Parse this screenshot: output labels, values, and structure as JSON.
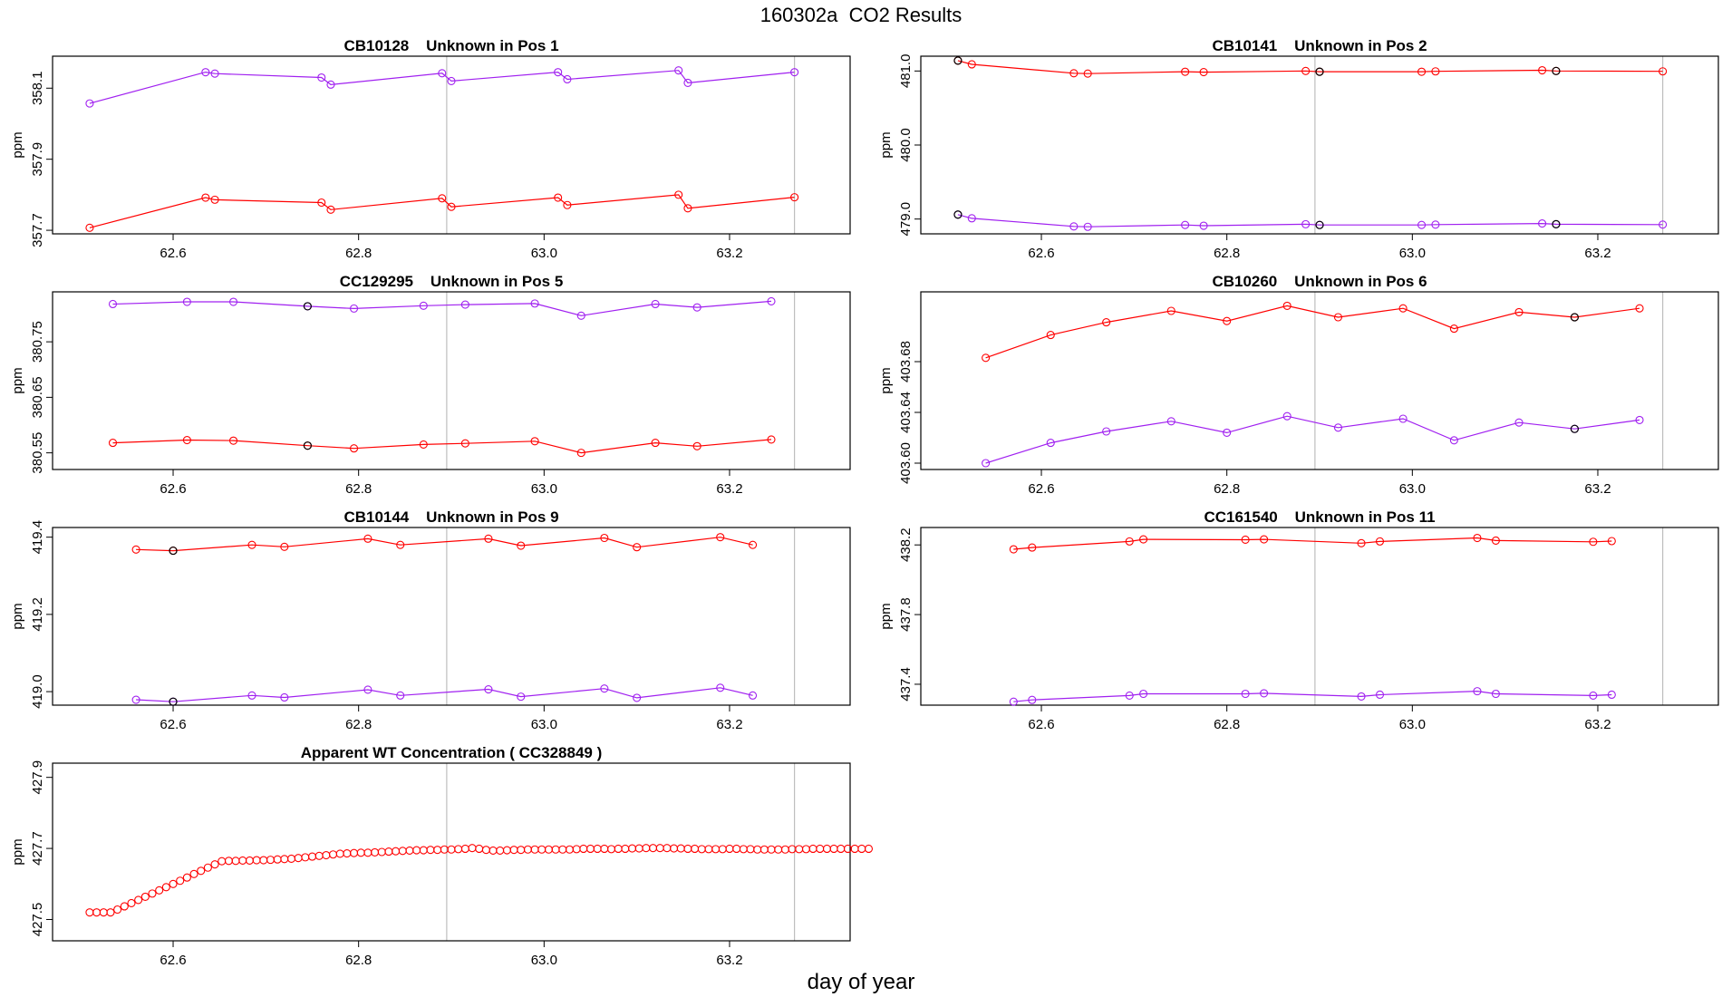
{
  "page": {
    "title": "160302a  CO2 Results",
    "xlabel": "day of year"
  },
  "colors": {
    "red": "#ff0000",
    "purple": "#a020f0",
    "flagged": "#000000",
    "guide_line": "#bebebe",
    "frame": "#000000"
  },
  "chart_data": [
    {
      "type": "line",
      "title": "CB10128    Unknown in Pos 1",
      "ylabel": "ppm",
      "xlim": [
        62.47,
        63.33
      ],
      "ylim": [
        357.69,
        358.19
      ],
      "xticks": [
        "62.6",
        "62.8",
        "63.0",
        "63.2"
      ],
      "yticks": [
        "357.7",
        "357.9",
        "358.1"
      ],
      "vlines": [
        62.895,
        63.27
      ],
      "series": [
        {
          "color": "purple",
          "x": [
            62.51,
            62.635,
            62.645,
            62.76,
            62.77,
            62.89,
            62.9,
            63.015,
            63.025,
            63.145,
            63.155,
            63.27
          ],
          "y": [
            358.057,
            358.145,
            358.141,
            358.13,
            358.11,
            358.142,
            358.12,
            358.145,
            358.125,
            358.15,
            358.115,
            358.145
          ]
        },
        {
          "color": "red",
          "x": [
            62.51,
            62.635,
            62.645,
            62.76,
            62.77,
            62.89,
            62.9,
            63.015,
            63.025,
            63.145,
            63.155,
            63.27
          ],
          "y": [
            357.707,
            357.792,
            357.786,
            357.778,
            357.758,
            357.79,
            357.766,
            357.792,
            357.771,
            357.8,
            357.762,
            357.793
          ]
        }
      ],
      "flagged": []
    },
    {
      "type": "line",
      "title": "CB10141    Unknown in Pos 2",
      "ylabel": "ppm",
      "xlim": [
        62.47,
        63.33
      ],
      "ylim": [
        478.8,
        481.2
      ],
      "xticks": [
        "62.6",
        "62.8",
        "63.0",
        "63.2"
      ],
      "yticks": [
        "479.0",
        "480.0",
        "481.0"
      ],
      "vlines": [
        62.895,
        63.27
      ],
      "series": [
        {
          "color": "red",
          "x": [
            62.51,
            62.525,
            62.635,
            62.65,
            62.755,
            62.775,
            62.885,
            62.9,
            63.01,
            63.025,
            63.14,
            63.155,
            63.27
          ],
          "y": [
            481.14,
            481.09,
            480.97,
            480.965,
            480.99,
            480.985,
            481.0,
            480.99,
            480.99,
            480.995,
            481.01,
            481.0,
            480.995
          ]
        },
        {
          "color": "purple",
          "x": [
            62.51,
            62.525,
            62.635,
            62.65,
            62.755,
            62.775,
            62.885,
            62.9,
            63.01,
            63.025,
            63.14,
            63.155,
            63.27
          ],
          "y": [
            479.06,
            479.01,
            478.9,
            478.895,
            478.92,
            478.91,
            478.93,
            478.92,
            478.92,
            478.925,
            478.94,
            478.93,
            478.925
          ]
        }
      ],
      "flagged": [
        {
          "x": 62.51,
          "y": 481.14
        },
        {
          "x": 62.9,
          "y": 480.99
        },
        {
          "x": 63.155,
          "y": 481.0
        },
        {
          "x": 62.51,
          "y": 479.06
        },
        {
          "x": 62.9,
          "y": 478.92
        },
        {
          "x": 63.155,
          "y": 478.93
        }
      ]
    },
    {
      "type": "line",
      "title": "CC129295    Unknown in Pos 5",
      "ylabel": "ppm",
      "xlim": [
        62.47,
        63.33
      ],
      "ylim": [
        380.52,
        380.84
      ],
      "xticks": [
        "62.6",
        "62.8",
        "63.0",
        "63.2"
      ],
      "yticks": [
        "380.55",
        "380.65",
        "380.75"
      ],
      "vlines": [
        62.895,
        63.27
      ],
      "series": [
        {
          "color": "purple",
          "x": [
            62.535,
            62.615,
            62.665,
            62.745,
            62.795,
            62.87,
            62.915,
            62.99,
            63.04,
            63.12,
            63.165,
            63.245
          ],
          "y": [
            380.818,
            380.822,
            380.822,
            380.814,
            380.81,
            380.815,
            380.817,
            380.819,
            380.797,
            380.818,
            380.812,
            380.823
          ]
        },
        {
          "color": "red",
          "x": [
            62.535,
            62.615,
            62.665,
            62.745,
            62.795,
            62.87,
            62.915,
            62.99,
            63.04,
            63.12,
            63.165,
            63.245
          ],
          "y": [
            380.568,
            380.573,
            380.572,
            380.563,
            380.558,
            380.565,
            380.567,
            380.571,
            380.55,
            380.568,
            380.562,
            380.574
          ]
        }
      ],
      "flagged": [
        {
          "x": 62.745,
          "y": 380.814
        },
        {
          "x": 62.745,
          "y": 380.563
        }
      ]
    },
    {
      "type": "line",
      "title": "CB10260    Unknown in Pos 6",
      "ylabel": "ppm",
      "xlim": [
        62.47,
        63.33
      ],
      "ylim": [
        403.595,
        403.735
      ],
      "xticks": [
        "62.6",
        "62.8",
        "63.0",
        "63.2"
      ],
      "yticks": [
        "403.60",
        "403.64",
        "403.68"
      ],
      "vlines": [
        62.895,
        63.27
      ],
      "series": [
        {
          "color": "red",
          "x": [
            62.54,
            62.61,
            62.67,
            62.74,
            62.8,
            62.865,
            62.92,
            62.99,
            63.045,
            63.115,
            63.175,
            63.245
          ],
          "y": [
            403.683,
            403.701,
            403.711,
            403.72,
            403.712,
            403.724,
            403.715,
            403.722,
            403.706,
            403.719,
            403.715,
            403.722
          ]
        },
        {
          "color": "purple",
          "x": [
            62.54,
            62.61,
            62.67,
            62.74,
            62.8,
            62.865,
            62.92,
            62.99,
            63.045,
            63.115,
            63.175,
            63.245
          ],
          "y": [
            403.6,
            403.616,
            403.625,
            403.633,
            403.624,
            403.637,
            403.628,
            403.635,
            403.618,
            403.632,
            403.627,
            403.634
          ]
        }
      ],
      "flagged": [
        {
          "x": 63.175,
          "y": 403.715
        },
        {
          "x": 63.175,
          "y": 403.627
        }
      ]
    },
    {
      "type": "line",
      "title": "CB10144    Unknown in Pos 9",
      "ylabel": "ppm",
      "xlim": [
        62.47,
        63.33
      ],
      "ylim": [
        418.965,
        419.425
      ],
      "xticks": [
        "62.6",
        "62.8",
        "63.0",
        "63.2"
      ],
      "yticks": [
        "419.0",
        "419.2",
        "419.4"
      ],
      "vlines": [
        62.895,
        63.27
      ],
      "series": [
        {
          "color": "red",
          "x": [
            62.56,
            62.6,
            62.685,
            62.72,
            62.81,
            62.845,
            62.94,
            62.975,
            63.065,
            63.1,
            63.19,
            63.225
          ],
          "y": [
            419.368,
            419.365,
            419.38,
            419.375,
            419.396,
            419.38,
            419.396,
            419.378,
            419.398,
            419.374,
            419.4,
            419.38
          ]
        },
        {
          "color": "purple",
          "x": [
            62.56,
            62.6,
            62.685,
            62.72,
            62.81,
            62.845,
            62.94,
            62.975,
            63.065,
            63.1,
            63.19,
            63.225
          ],
          "y": [
            418.979,
            418.974,
            418.99,
            418.985,
            419.005,
            418.99,
            419.006,
            418.987,
            419.008,
            418.984,
            419.01,
            418.99
          ]
        }
      ],
      "flagged": [
        {
          "x": 62.6,
          "y": 419.365
        },
        {
          "x": 62.6,
          "y": 418.974
        }
      ]
    },
    {
      "type": "line",
      "title": "CC161540    Unknown in Pos 11",
      "ylabel": "ppm",
      "xlim": [
        62.47,
        63.33
      ],
      "ylim": [
        437.28,
        438.3
      ],
      "xticks": [
        "62.6",
        "62.8",
        "63.0",
        "63.2"
      ],
      "yticks": [
        "437.4",
        "437.8",
        "438.2"
      ],
      "vlines": [
        62.895,
        63.27
      ],
      "series": [
        {
          "color": "red",
          "x": [
            62.57,
            62.59,
            62.695,
            62.71,
            62.82,
            62.84,
            62.945,
            62.965,
            63.07,
            63.09,
            63.195,
            63.215
          ],
          "y": [
            438.175,
            438.185,
            438.22,
            438.232,
            438.23,
            438.232,
            438.21,
            438.22,
            438.24,
            438.225,
            438.218,
            438.222
          ]
        },
        {
          "color": "purple",
          "x": [
            62.57,
            62.59,
            62.695,
            62.71,
            62.82,
            62.84,
            62.945,
            62.965,
            63.07,
            63.09,
            63.195,
            63.215
          ],
          "y": [
            437.3,
            437.31,
            437.335,
            437.345,
            437.345,
            437.348,
            437.33,
            437.34,
            437.36,
            437.345,
            437.335,
            437.34
          ]
        }
      ],
      "flagged": []
    },
    {
      "type": "scatter",
      "title": "Apparent WT Concentration ( CC328849 )",
      "ylabel": "ppm",
      "xlim": [
        62.47,
        63.33
      ],
      "ylim": [
        427.44,
        427.94
      ],
      "xticks": [
        "62.6",
        "62.8",
        "63.0",
        "63.2"
      ],
      "yticks": [
        "427.5",
        "427.7",
        "427.9"
      ],
      "vlines": [
        62.895,
        63.27
      ],
      "series": [
        {
          "color": "red",
          "x_start": 62.51,
          "x_step": 0.0075,
          "y": [
            427.52,
            427.52,
            427.52,
            427.52,
            427.528,
            427.537,
            427.546,
            427.555,
            427.564,
            427.573,
            427.582,
            427.591,
            427.6,
            427.609,
            427.618,
            427.628,
            427.637,
            427.646,
            427.655,
            427.664,
            427.665,
            427.665,
            427.666,
            427.666,
            427.667,
            427.667,
            427.668,
            427.669,
            427.67,
            427.671,
            427.673,
            427.675,
            427.677,
            427.679,
            427.681,
            427.683,
            427.685,
            427.686,
            427.687,
            427.688,
            427.688,
            427.689,
            427.69,
            427.691,
            427.692,
            427.693,
            427.694,
            427.695,
            427.695,
            427.696,
            427.696,
            427.697,
            427.697,
            427.698,
            427.699,
            427.701,
            427.699,
            427.696,
            427.694,
            427.694,
            427.695,
            427.696,
            427.696,
            427.697,
            427.697,
            427.697,
            427.697,
            427.697,
            427.697,
            427.697,
            427.698,
            427.699,
            427.699,
            427.699,
            427.699,
            427.698,
            427.699,
            427.699,
            427.7,
            427.7,
            427.701,
            427.701,
            427.701,
            427.701,
            427.7,
            427.7,
            427.699,
            427.699,
            427.698,
            427.698,
            427.698,
            427.698,
            427.699,
            427.699,
            427.698,
            427.698,
            427.697,
            427.697,
            427.697,
            427.697,
            427.697,
            427.698,
            427.698,
            427.698,
            427.699,
            427.699,
            427.699,
            427.699,
            427.699,
            427.699,
            427.699,
            427.699,
            427.699
          ]
        }
      ],
      "flagged": []
    }
  ]
}
